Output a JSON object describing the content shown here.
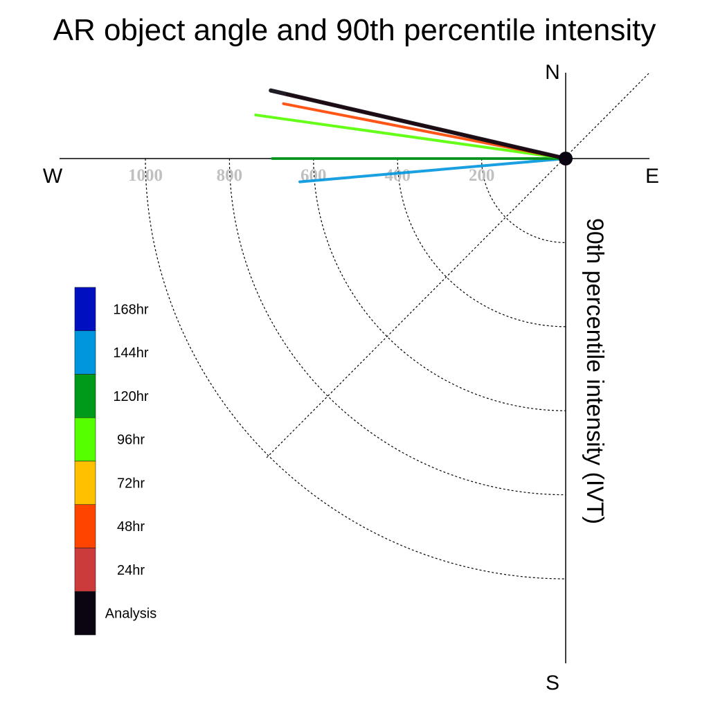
{
  "chart_data": {
    "type": "polar-line",
    "title": "AR object angle and 90th percentile intensity",
    "radial_label": "90th percentile intensity (IVT)",
    "radial_ticks": [
      200,
      400,
      600,
      800,
      1000
    ],
    "radial_range": [
      0,
      1000
    ],
    "directions": {
      "north": "N",
      "south": "S",
      "east": "E",
      "west": "W"
    },
    "series": [
      {
        "name": "Analysis",
        "color": "#0a0510",
        "angle_deg": 167,
        "intensity": 720
      },
      {
        "name": "24hr",
        "color": "#cc3b3b",
        "angle_deg": 167,
        "intensity": 680
      },
      {
        "name": "48hr",
        "color": "#ff4400",
        "angle_deg": 169,
        "intensity": 684
      },
      {
        "name": "72hr",
        "color": "#ffc000",
        "angle_deg": 167,
        "intensity": 668
      },
      {
        "name": "96hr",
        "color": "#55ff00",
        "angle_deg": 172,
        "intensity": 745
      },
      {
        "name": "120hr",
        "color": "#009a1a",
        "angle_deg": 180,
        "intensity": 698
      },
      {
        "name": "144hr",
        "color": "#0096de",
        "angle_deg": 185,
        "intensity": 635
      },
      {
        "name": "168hr",
        "color": "#0010c0",
        "angle_deg": null,
        "intensity": null
      }
    ],
    "legend": [
      {
        "label": "168hr",
        "color": "#0010c0"
      },
      {
        "label": "144hr",
        "color": "#0096de"
      },
      {
        "label": "120hr",
        "color": "#009a1a"
      },
      {
        "label": "96hr",
        "color": "#55ff00"
      },
      {
        "label": "72hr",
        "color": "#ffc000"
      },
      {
        "label": "48hr",
        "color": "#ff4400"
      },
      {
        "label": "24hr",
        "color": "#cc3b3b"
      },
      {
        "label": "Analysis",
        "color": "#0a0510"
      }
    ]
  }
}
